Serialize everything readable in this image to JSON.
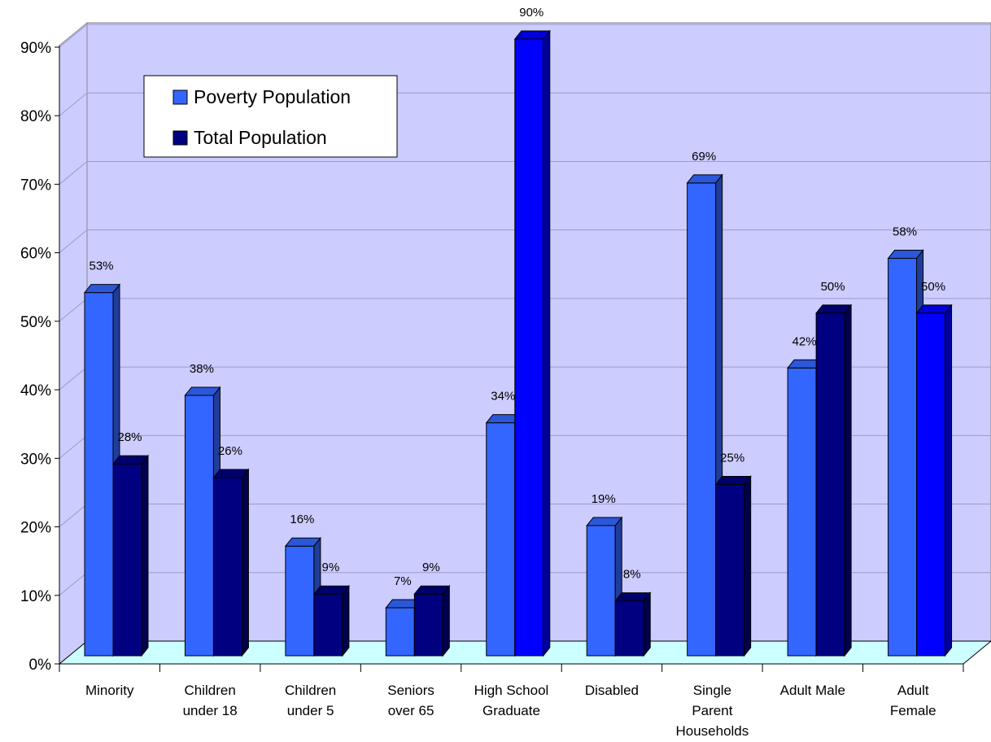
{
  "chart_data": {
    "type": "bar",
    "style": "3d-clustered-column",
    "categories": [
      [
        "Minority"
      ],
      [
        "Children",
        "under 18"
      ],
      [
        "Children",
        "under 5"
      ],
      [
        "Seniors",
        "over 65"
      ],
      [
        "High School",
        "Graduate"
      ],
      [
        "Disabled"
      ],
      [
        "Single",
        "Parent",
        "Households"
      ],
      [
        "Adult Male"
      ],
      [
        "Adult",
        "Female"
      ]
    ],
    "series": [
      {
        "name": "Poverty Population",
        "values": [
          53,
          38,
          16,
          7,
          34,
          19,
          69,
          42,
          58
        ],
        "labels": [
          "53%",
          "38%",
          "16%",
          "7%",
          "34%",
          "19%",
          "69%",
          "42%",
          "58%"
        ],
        "color": "#3366FF"
      },
      {
        "name": "Total Population",
        "values": [
          28,
          26,
          9,
          9,
          90,
          8,
          25,
          50,
          50
        ],
        "labels": [
          "28%",
          "26%",
          "9%",
          "9%",
          "90%",
          "8%",
          "25%",
          "50%",
          "50%"
        ],
        "color": "#000080"
      }
    ],
    "highlight_color": "#0000FF",
    "highlighted_points": [
      [
        1,
        4
      ],
      [
        1,
        8
      ]
    ],
    "y_ticks": [
      "0%",
      "10%",
      "20%",
      "30%",
      "40%",
      "50%",
      "60%",
      "70%",
      "80%",
      "90%"
    ],
    "ylim": [
      0,
      90
    ],
    "grid": true,
    "legend_position": "top-left",
    "wall_color": "#CCCCFF",
    "floor_color": "#CCFFFF"
  }
}
